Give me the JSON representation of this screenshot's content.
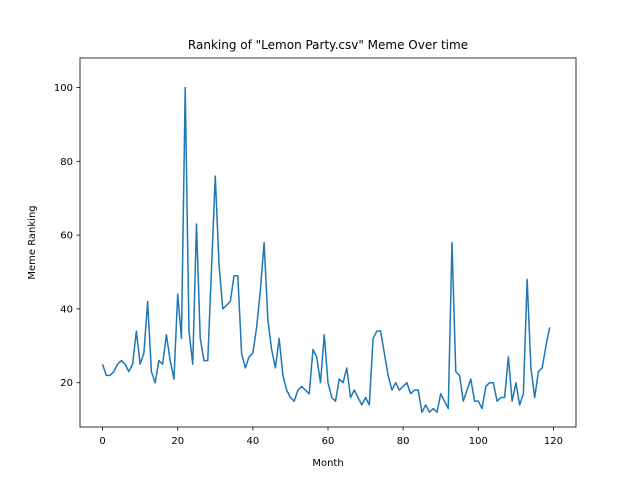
{
  "chart_data": {
    "type": "line",
    "title": "Ranking of \"Lemon Party.csv\" Meme Over time",
    "xlabel": "Month",
    "ylabel": "Meme Ranking",
    "xlim": [
      -6,
      126
    ],
    "ylim": [
      8,
      108
    ],
    "x_ticks": [
      0,
      20,
      40,
      60,
      80,
      100,
      120
    ],
    "y_ticks": [
      20,
      40,
      60,
      80,
      100
    ],
    "grid": false,
    "line_color": "#1f77b4",
    "series": [
      {
        "x": [
          0,
          1,
          2,
          3,
          4,
          5,
          6,
          7,
          8,
          9,
          10,
          11,
          12,
          13,
          14,
          15,
          16,
          17,
          18,
          19,
          20,
          21,
          22,
          23,
          24,
          25,
          26,
          27,
          28,
          29,
          30,
          31,
          32,
          33,
          34,
          35,
          36,
          37,
          38,
          39,
          40,
          41,
          42,
          43,
          44,
          45,
          46,
          47,
          48,
          49,
          50,
          51,
          52,
          53,
          54,
          55,
          56,
          57,
          58,
          59,
          60,
          61,
          62,
          63,
          64,
          65,
          66,
          67,
          68,
          69,
          70,
          71,
          72,
          73,
          74,
          75,
          76,
          77,
          78,
          79,
          80,
          81,
          82,
          83,
          84,
          85,
          86,
          87,
          88,
          89,
          90,
          91,
          92,
          93,
          94,
          95,
          96,
          97,
          98,
          99,
          100,
          101,
          102,
          103,
          104,
          105,
          106,
          107,
          108,
          109,
          110,
          111,
          112,
          113,
          114,
          115,
          116,
          117,
          118,
          119
        ],
        "values": [
          25,
          22,
          22,
          23,
          25,
          26,
          25,
          23,
          25,
          34,
          25,
          28,
          42,
          23,
          20,
          26,
          25,
          33,
          26,
          21,
          44,
          32,
          100,
          34,
          25,
          63,
          32,
          26,
          26,
          51,
          76,
          52,
          40,
          41,
          42,
          49,
          49,
          28,
          24,
          27,
          28,
          35,
          45,
          58,
          37,
          29,
          24,
          32,
          22,
          18,
          16,
          15,
          18,
          19,
          18,
          17,
          29,
          27,
          20,
          33,
          20,
          16,
          15,
          21,
          20,
          24,
          16,
          18,
          16,
          14,
          16,
          14,
          32,
          34,
          34,
          28,
          22,
          18,
          20,
          18,
          19,
          20,
          17,
          18,
          18,
          12,
          14,
          12,
          13,
          12,
          17,
          15,
          13,
          58,
          23,
          22,
          15,
          18,
          21,
          15,
          15,
          13,
          19,
          20,
          20,
          15,
          16,
          16,
          27,
          15,
          20,
          14,
          17,
          48,
          24,
          16,
          23,
          24,
          30,
          35
        ]
      }
    ]
  }
}
